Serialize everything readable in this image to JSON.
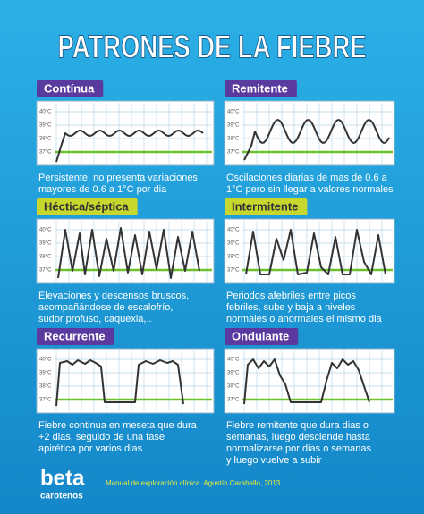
{
  "title": "PATRONES DE LA FIEBRE",
  "axis_labels": [
    "40°C",
    "39°C",
    "38°C",
    "37°C"
  ],
  "panels": [
    {
      "label": "Contínua",
      "description": [
        "Persistente, no presenta variaciones",
        "mayores de 0.6 a 1°C por dia"
      ]
    },
    {
      "label": "Remitente",
      "description": [
        "Oscilaciones diarias de mas de 0.6 a",
        "1°C pero sin llegar a valores normales"
      ]
    },
    {
      "label": "Héctica/séptica",
      "description": [
        "Elevaciones y descensos bruscos,",
        "acompañándose de escalofrío,",
        "sudor profuso, caquexia,.."
      ]
    },
    {
      "label": "Intermitente",
      "description": [
        "Periodos afebriles entre picos",
        "febriles, sube y baja a niveles",
        "normales o anormales el mismo dia"
      ]
    },
    {
      "label": "Recurrente",
      "description": [
        "Fiebre continua en meseta que dura",
        "+2 dias, seguido de una fase",
        "apirética por varios dias"
      ]
    },
    {
      "label": "Ondulante",
      "description": [
        "Fiebre remitente que dura dias o",
        "semanas, luego desciende hasta",
        "normalizarse por dias o semanas",
        "y luego vuelve a subir"
      ]
    }
  ],
  "footer": {
    "brand": "beta",
    "brand_sub": "carotenos",
    "citation": "Manual de exploración clínica. Agustín Caraballo, 2013"
  }
}
